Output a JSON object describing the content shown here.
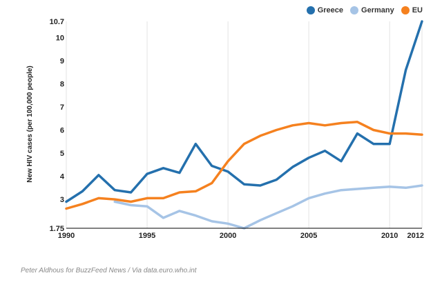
{
  "chart_data": {
    "type": "line",
    "title": "",
    "xlabel": "",
    "ylabel": "New HIV cases (per 100,000 people)",
    "xlim": [
      1990,
      2012
    ],
    "ylim": [
      1.75,
      10.7
    ],
    "xticks": [
      {
        "value": 1990,
        "label": "1990"
      },
      {
        "value": 1995,
        "label": "1995"
      },
      {
        "value": 2000,
        "label": "2000"
      },
      {
        "value": 2005,
        "label": "2005"
      },
      {
        "value": 2010,
        "label": "2010"
      },
      {
        "value": 2012,
        "label": "2012"
      }
    ],
    "yticks": [
      {
        "value": 1.75,
        "label": "1.75"
      },
      {
        "value": 3,
        "label": "3"
      },
      {
        "value": 4,
        "label": "4"
      },
      {
        "value": 5,
        "label": "5"
      },
      {
        "value": 6,
        "label": "6"
      },
      {
        "value": 7,
        "label": "7"
      },
      {
        "value": 8,
        "label": "8"
      },
      {
        "value": 9,
        "label": "9"
      },
      {
        "value": 10,
        "label": "10"
      },
      {
        "value": 10.7,
        "label": "10.7"
      }
    ],
    "grid": "vertical",
    "legend_position": "top-right",
    "series": [
      {
        "name": "Greece",
        "color": "#2470ad",
        "x": [
          1990,
          1991,
          1992,
          1993,
          1994,
          1995,
          1996,
          1997,
          1998,
          1999,
          2000,
          2001,
          2002,
          2003,
          2004,
          2005,
          2006,
          2007,
          2008,
          2009,
          2010,
          2011,
          2012
        ],
        "y": [
          2.9,
          3.35,
          4.05,
          3.4,
          3.3,
          4.1,
          4.35,
          4.15,
          5.4,
          4.45,
          4.2,
          3.65,
          3.6,
          3.85,
          4.4,
          4.8,
          5.1,
          4.65,
          5.85,
          5.4,
          5.4,
          8.6,
          10.7
        ]
      },
      {
        "name": "Germany",
        "color": "#a6c4e6",
        "x": [
          1993,
          1994,
          1995,
          1996,
          1997,
          1998,
          1999,
          2000,
          2001,
          2002,
          2003,
          2004,
          2005,
          2006,
          2007,
          2008,
          2009,
          2010,
          2011,
          2012
        ],
        "y": [
          2.9,
          2.75,
          2.7,
          2.2,
          2.5,
          2.3,
          2.05,
          1.95,
          1.75,
          2.1,
          2.4,
          2.7,
          3.05,
          3.25,
          3.4,
          3.45,
          3.5,
          3.55,
          3.5,
          3.6
        ]
      },
      {
        "name": "EU",
        "color": "#f5811f",
        "x": [
          1990,
          1991,
          1992,
          1993,
          1994,
          1995,
          1996,
          1997,
          1998,
          1999,
          2000,
          2001,
          2002,
          2003,
          2004,
          2005,
          2006,
          2007,
          2008,
          2009,
          2010,
          2011,
          2012
        ],
        "y": [
          2.6,
          2.8,
          3.05,
          3.0,
          2.9,
          3.05,
          3.05,
          3.3,
          3.35,
          3.7,
          4.65,
          5.4,
          5.75,
          6.0,
          6.2,
          6.3,
          6.2,
          6.3,
          6.35,
          6.0,
          5.85,
          5.85,
          5.8
        ]
      }
    ]
  },
  "source": "Peter Aldhous for BuzzFeed News / Via data.euro.who.int"
}
